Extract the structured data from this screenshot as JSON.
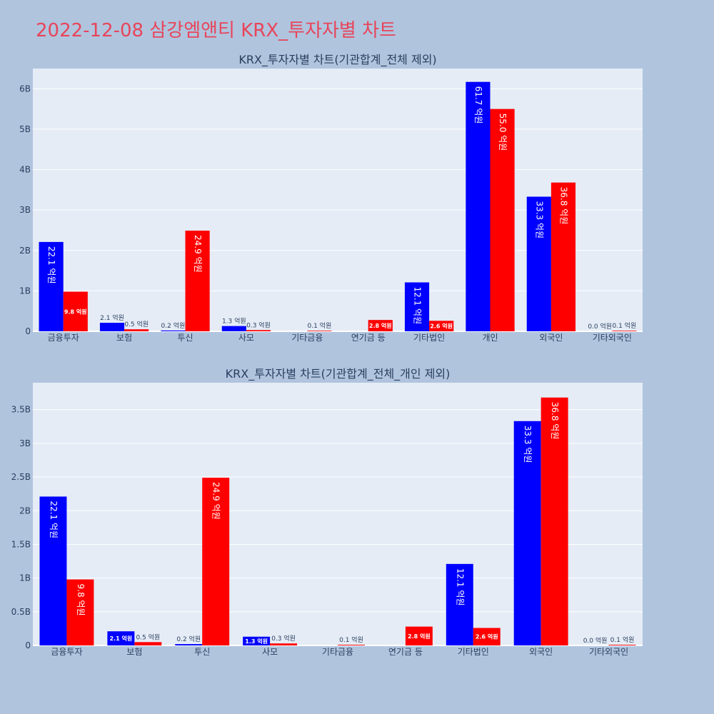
{
  "page": {
    "title": "2022-12-08 삼강엠앤티 KRX_투자자별 차트"
  },
  "colors": {
    "buy": "#0000ff",
    "sell": "#ff0000",
    "plot_bg": "#e5ecf6",
    "page_bg": "#b0c4de",
    "title": "#e8455a"
  },
  "chart_data": [
    {
      "type": "bar",
      "title": "KRX_투자자별 차트(기관합계_전체 제외)",
      "categories": [
        "금융투자",
        "보험",
        "투신",
        "사모",
        "기타금융",
        "연기금 등",
        "기타법인",
        "개인",
        "외국인",
        "기타외국인"
      ],
      "series": [
        {
          "color": "#0000ff",
          "values": [
            2.21,
            0.21,
            0.02,
            0.13,
            0.0,
            0.0,
            1.21,
            6.17,
            3.33,
            0.0
          ],
          "labels": [
            "22.1 억원",
            "2.1 억원",
            "0.2 억원",
            "1.3 억원",
            "",
            "",
            "12.1 억원",
            "61.7 억원",
            "33.3 억원",
            "0.0 억원"
          ]
        },
        {
          "color": "#ff0000",
          "values": [
            0.98,
            0.05,
            2.49,
            0.03,
            0.01,
            0.28,
            0.26,
            5.5,
            3.68,
            0.01
          ],
          "labels": [
            "9.8 억원",
            "0.5 억원",
            "24.9 억원",
            "0.3 억원",
            "0.1 억원",
            "2.8 억원",
            "2.6 억원",
            "55.0 억원",
            "36.8 억원",
            "0.1 억원"
          ]
        }
      ],
      "yticks": [
        0,
        1,
        2,
        3,
        4,
        5,
        6
      ],
      "ytick_labels": [
        "0",
        "1B",
        "2B",
        "3B",
        "4B",
        "5B",
        "6B"
      ],
      "ylim": [
        0,
        6.5
      ],
      "grid": true
    },
    {
      "type": "bar",
      "title": "KRX_투자자별 차트(기관합계_전체_개인 제외)",
      "categories": [
        "금융투자",
        "보험",
        "투신",
        "사모",
        "기타금융",
        "연기금 등",
        "기타법인",
        "외국인",
        "기타외국인"
      ],
      "series": [
        {
          "color": "#0000ff",
          "values": [
            2.21,
            0.21,
            0.02,
            0.13,
            0.0,
            0.0,
            1.21,
            3.33,
            0.0
          ],
          "labels": [
            "22.1 억원",
            "2.1 억원",
            "0.2 억원",
            "1.3 억원",
            "",
            "",
            "12.1 억원",
            "33.3 억원",
            "0.0 억원"
          ]
        },
        {
          "color": "#ff0000",
          "values": [
            0.98,
            0.05,
            2.49,
            0.03,
            0.01,
            0.28,
            0.26,
            3.68,
            0.01
          ],
          "labels": [
            "9.8 억원",
            "0.5 억원",
            "24.9 억원",
            "0.3 억원",
            "0.1 억원",
            "2.8 억원",
            "2.6 억원",
            "36.8 억원",
            "0.1 억원"
          ]
        }
      ],
      "yticks": [
        0,
        0.5,
        1,
        1.5,
        2,
        2.5,
        3,
        3.5
      ],
      "ytick_labels": [
        "0",
        "0.5B",
        "1B",
        "1.5B",
        "2B",
        "2.5B",
        "3B",
        "3.5B"
      ],
      "ylim": [
        0,
        3.9
      ],
      "grid": true
    }
  ]
}
